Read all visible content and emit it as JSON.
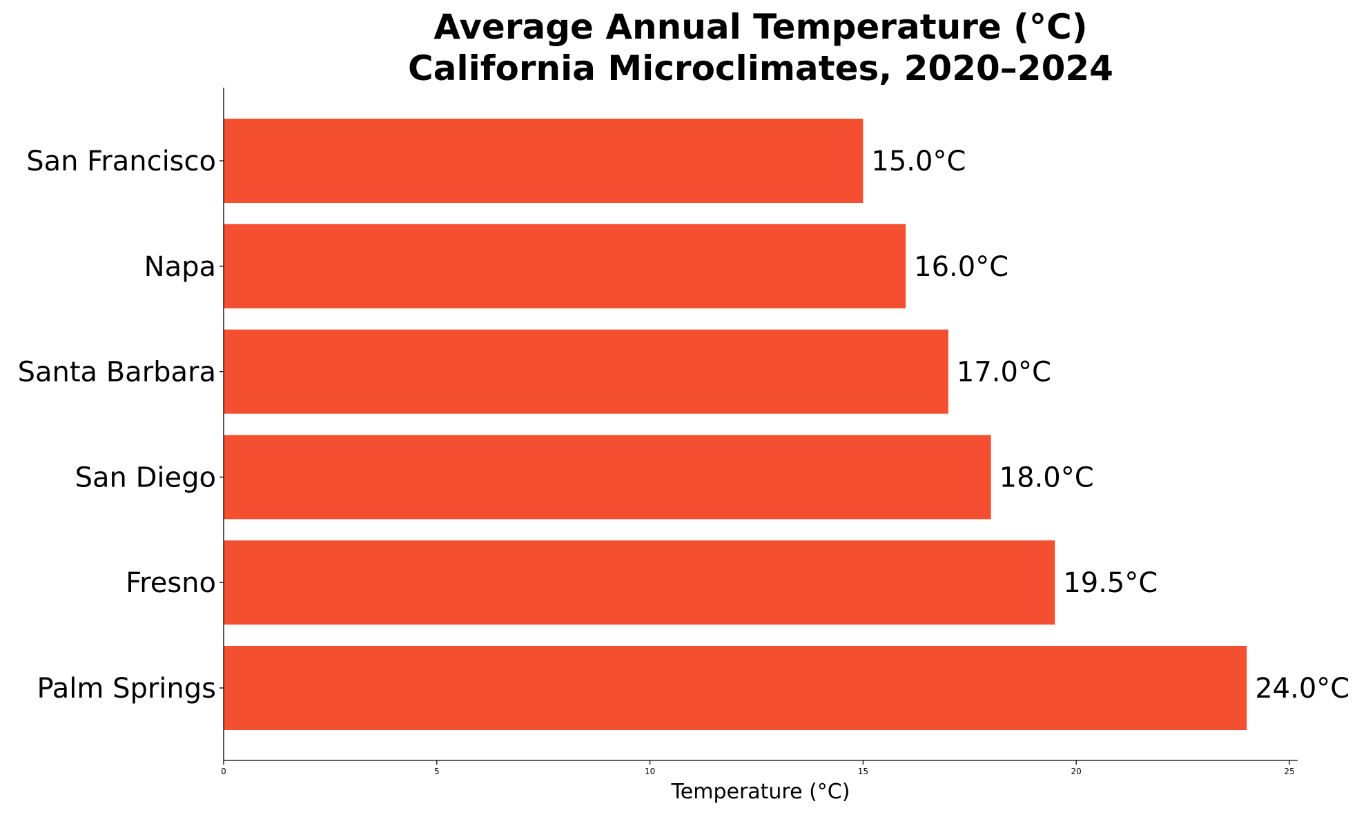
{
  "chart_data": {
    "type": "bar",
    "orientation": "horizontal",
    "title": "Average Annual Temperature (°C)",
    "subtitle": "California Microclimates, 2020–2024",
    "xlabel": "Temperature (°C)",
    "ylabel": "",
    "categories": [
      "San Francisco",
      "Napa",
      "Santa Barbara",
      "San Diego",
      "Fresno",
      "Palm Springs"
    ],
    "values": [
      15.0,
      16.0,
      17.0,
      18.0,
      19.5,
      24.0
    ],
    "data_labels": [
      "15.0°C",
      "16.0°C",
      "17.0°C",
      "18.0°C",
      "19.5°C",
      "24.0°C"
    ],
    "xlim": [
      0,
      25.2
    ],
    "xticks": [
      0,
      5,
      10,
      15,
      20,
      25
    ],
    "xtick_labels": [
      "0",
      "5",
      "10",
      "15",
      "20",
      "25"
    ],
    "grid": false,
    "bar_color": "#F44F30"
  }
}
